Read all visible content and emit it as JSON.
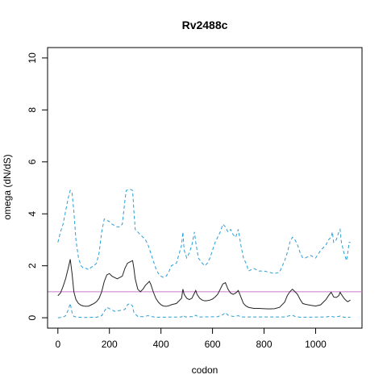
{
  "chart_data": {
    "type": "line",
    "title": "Rv2488c",
    "xlabel": "codon",
    "ylabel": "omega (dN/dS)",
    "xlim": [
      -40,
      1180
    ],
    "ylim": [
      -0.4,
      10.4
    ],
    "xticks": [
      0,
      200,
      400,
      600,
      800,
      1000
    ],
    "yticks": [
      0,
      2,
      4,
      6,
      8,
      10
    ],
    "grid": false,
    "reference_line": {
      "y": 1,
      "color": "#c77cc7"
    },
    "series": [
      {
        "style": "upper",
        "color": "#2a9fd6",
        "dash": "dashed",
        "points": [
          [
            0,
            2.9
          ],
          [
            10,
            3.3
          ],
          [
            20,
            3.6
          ],
          [
            30,
            4.1
          ],
          [
            40,
            4.6
          ],
          [
            48,
            4.9
          ],
          [
            55,
            4.8
          ],
          [
            62,
            4.1
          ],
          [
            70,
            3.0
          ],
          [
            80,
            2.3
          ],
          [
            90,
            2.0
          ],
          [
            100,
            1.9
          ],
          [
            110,
            1.9
          ],
          [
            120,
            1.85
          ],
          [
            130,
            1.95
          ],
          [
            140,
            2.0
          ],
          [
            150,
            2.1
          ],
          [
            160,
            2.5
          ],
          [
            170,
            3.3
          ],
          [
            180,
            3.8
          ],
          [
            190,
            3.75
          ],
          [
            200,
            3.7
          ],
          [
            210,
            3.6
          ],
          [
            220,
            3.55
          ],
          [
            230,
            3.5
          ],
          [
            240,
            3.5
          ],
          [
            250,
            3.6
          ],
          [
            260,
            4.5
          ],
          [
            265,
            4.9
          ],
          [
            280,
            4.95
          ],
          [
            290,
            4.9
          ],
          [
            295,
            4.1
          ],
          [
            300,
            3.4
          ],
          [
            310,
            3.3
          ],
          [
            320,
            3.2
          ],
          [
            330,
            3.1
          ],
          [
            340,
            3.0
          ],
          [
            350,
            2.8
          ],
          [
            360,
            2.5
          ],
          [
            370,
            2.2
          ],
          [
            380,
            1.9
          ],
          [
            390,
            1.7
          ],
          [
            400,
            1.6
          ],
          [
            410,
            1.55
          ],
          [
            420,
            1.6
          ],
          [
            430,
            1.75
          ],
          [
            440,
            2.0
          ],
          [
            460,
            2.1
          ],
          [
            480,
            2.8
          ],
          [
            485,
            3.3
          ],
          [
            490,
            2.6
          ],
          [
            500,
            2.3
          ],
          [
            510,
            2.5
          ],
          [
            520,
            2.8
          ],
          [
            530,
            3.3
          ],
          [
            535,
            2.9
          ],
          [
            545,
            2.3
          ],
          [
            560,
            2.1
          ],
          [
            570,
            2.0
          ],
          [
            580,
            2.1
          ],
          [
            590,
            2.3
          ],
          [
            600,
            2.6
          ],
          [
            610,
            2.9
          ],
          [
            620,
            3.1
          ],
          [
            630,
            3.3
          ],
          [
            640,
            3.6
          ],
          [
            650,
            3.5
          ],
          [
            660,
            3.3
          ],
          [
            670,
            3.4
          ],
          [
            680,
            3.2
          ],
          [
            690,
            3.1
          ],
          [
            700,
            3.4
          ],
          [
            710,
            2.8
          ],
          [
            720,
            2.3
          ],
          [
            730,
            2.1
          ],
          [
            740,
            1.8
          ],
          [
            760,
            1.9
          ],
          [
            780,
            1.8
          ],
          [
            800,
            1.8
          ],
          [
            820,
            1.75
          ],
          [
            840,
            1.7
          ],
          [
            860,
            1.75
          ],
          [
            880,
            2.2
          ],
          [
            890,
            2.5
          ],
          [
            900,
            2.9
          ],
          [
            910,
            3.1
          ],
          [
            920,
            3.0
          ],
          [
            930,
            2.8
          ],
          [
            940,
            2.5
          ],
          [
            950,
            2.3
          ],
          [
            960,
            2.3
          ],
          [
            980,
            2.4
          ],
          [
            1000,
            2.3
          ],
          [
            1020,
            2.6
          ],
          [
            1030,
            2.7
          ],
          [
            1040,
            2.8
          ],
          [
            1050,
            3.0
          ],
          [
            1060,
            3.1
          ],
          [
            1065,
            3.3
          ],
          [
            1070,
            2.9
          ],
          [
            1080,
            3.0
          ],
          [
            1090,
            3.3
          ],
          [
            1095,
            3.4
          ],
          [
            1100,
            2.9
          ],
          [
            1110,
            2.5
          ],
          [
            1120,
            2.2
          ],
          [
            1125,
            2.5
          ],
          [
            1130,
            2.9
          ],
          [
            1135,
            2.9
          ]
        ]
      },
      {
        "style": "mean",
        "color": "#222222",
        "dash": "solid",
        "points": [
          [
            0,
            0.85
          ],
          [
            10,
            0.95
          ],
          [
            20,
            1.2
          ],
          [
            30,
            1.5
          ],
          [
            40,
            1.9
          ],
          [
            48,
            2.25
          ],
          [
            55,
            1.7
          ],
          [
            62,
            1.0
          ],
          [
            70,
            0.7
          ],
          [
            80,
            0.55
          ],
          [
            90,
            0.48
          ],
          [
            100,
            0.45
          ],
          [
            110,
            0.44
          ],
          [
            120,
            0.45
          ],
          [
            130,
            0.5
          ],
          [
            140,
            0.55
          ],
          [
            150,
            0.62
          ],
          [
            160,
            0.75
          ],
          [
            170,
            1.0
          ],
          [
            180,
            1.4
          ],
          [
            190,
            1.65
          ],
          [
            200,
            1.7
          ],
          [
            210,
            1.6
          ],
          [
            220,
            1.55
          ],
          [
            230,
            1.5
          ],
          [
            240,
            1.55
          ],
          [
            250,
            1.6
          ],
          [
            260,
            1.9
          ],
          [
            270,
            2.1
          ],
          [
            280,
            2.15
          ],
          [
            290,
            2.2
          ],
          [
            295,
            1.9
          ],
          [
            300,
            1.5
          ],
          [
            310,
            1.1
          ],
          [
            320,
            1.0
          ],
          [
            330,
            1.1
          ],
          [
            340,
            1.25
          ],
          [
            350,
            1.35
          ],
          [
            355,
            1.4
          ],
          [
            360,
            1.3
          ],
          [
            370,
            1.0
          ],
          [
            380,
            0.75
          ],
          [
            390,
            0.6
          ],
          [
            400,
            0.5
          ],
          [
            410,
            0.45
          ],
          [
            420,
            0.44
          ],
          [
            430,
            0.46
          ],
          [
            440,
            0.5
          ],
          [
            460,
            0.55
          ],
          [
            480,
            0.75
          ],
          [
            485,
            1.1
          ],
          [
            490,
            0.9
          ],
          [
            500,
            0.75
          ],
          [
            510,
            0.7
          ],
          [
            520,
            0.75
          ],
          [
            530,
            0.95
          ],
          [
            535,
            1.05
          ],
          [
            540,
            0.9
          ],
          [
            550,
            0.75
          ],
          [
            560,
            0.68
          ],
          [
            570,
            0.65
          ],
          [
            580,
            0.66
          ],
          [
            590,
            0.68
          ],
          [
            600,
            0.72
          ],
          [
            610,
            0.8
          ],
          [
            620,
            0.9
          ],
          [
            630,
            1.1
          ],
          [
            640,
            1.3
          ],
          [
            650,
            1.35
          ],
          [
            660,
            1.1
          ],
          [
            670,
            0.95
          ],
          [
            680,
            0.9
          ],
          [
            690,
            0.95
          ],
          [
            700,
            1.05
          ],
          [
            710,
            0.8
          ],
          [
            720,
            0.55
          ],
          [
            730,
            0.45
          ],
          [
            740,
            0.4
          ],
          [
            760,
            0.36
          ],
          [
            780,
            0.36
          ],
          [
            800,
            0.35
          ],
          [
            820,
            0.34
          ],
          [
            840,
            0.35
          ],
          [
            860,
            0.4
          ],
          [
            880,
            0.6
          ],
          [
            890,
            0.85
          ],
          [
            900,
            1.0
          ],
          [
            910,
            1.1
          ],
          [
            920,
            1.0
          ],
          [
            930,
            0.9
          ],
          [
            940,
            0.7
          ],
          [
            950,
            0.55
          ],
          [
            960,
            0.52
          ],
          [
            980,
            0.48
          ],
          [
            1000,
            0.45
          ],
          [
            1020,
            0.5
          ],
          [
            1030,
            0.6
          ],
          [
            1040,
            0.7
          ],
          [
            1050,
            0.85
          ],
          [
            1060,
            0.98
          ],
          [
            1065,
            0.9
          ],
          [
            1070,
            0.8
          ],
          [
            1080,
            0.78
          ],
          [
            1090,
            0.85
          ],
          [
            1095,
            0.98
          ],
          [
            1100,
            0.9
          ],
          [
            1110,
            0.75
          ],
          [
            1120,
            0.65
          ],
          [
            1125,
            0.62
          ],
          [
            1130,
            0.65
          ],
          [
            1135,
            0.68
          ]
        ]
      },
      {
        "style": "lower",
        "color": "#2a9fd6",
        "dash": "dashed",
        "points": [
          [
            0,
            0.0
          ],
          [
            20,
            0.02
          ],
          [
            30,
            0.08
          ],
          [
            40,
            0.3
          ],
          [
            48,
            0.55
          ],
          [
            55,
            0.2
          ],
          [
            62,
            0.05
          ],
          [
            80,
            0.02
          ],
          [
            100,
            0.01
          ],
          [
            150,
            0.02
          ],
          [
            170,
            0.08
          ],
          [
            180,
            0.25
          ],
          [
            190,
            0.4
          ],
          [
            200,
            0.35
          ],
          [
            210,
            0.3
          ],
          [
            220,
            0.25
          ],
          [
            240,
            0.28
          ],
          [
            260,
            0.32
          ],
          [
            270,
            0.5
          ],
          [
            280,
            0.55
          ],
          [
            290,
            0.45
          ],
          [
            295,
            0.2
          ],
          [
            310,
            0.05
          ],
          [
            330,
            0.04
          ],
          [
            350,
            0.08
          ],
          [
            360,
            0.05
          ],
          [
            380,
            0.02
          ],
          [
            480,
            0.03
          ],
          [
            485,
            0.1
          ],
          [
            495,
            0.03
          ],
          [
            530,
            0.05
          ],
          [
            535,
            0.1
          ],
          [
            545,
            0.03
          ],
          [
            620,
            0.04
          ],
          [
            640,
            0.12
          ],
          [
            650,
            0.2
          ],
          [
            660,
            0.1
          ],
          [
            680,
            0.05
          ],
          [
            700,
            0.08
          ],
          [
            710,
            0.03
          ],
          [
            880,
            0.03
          ],
          [
            900,
            0.08
          ],
          [
            910,
            0.1
          ],
          [
            920,
            0.05
          ],
          [
            940,
            0.02
          ],
          [
            1040,
            0.03
          ],
          [
            1060,
            0.06
          ],
          [
            1070,
            0.03
          ],
          [
            1090,
            0.05
          ],
          [
            1095,
            0.07
          ],
          [
            1110,
            0.02
          ],
          [
            1135,
            0.02
          ]
        ]
      }
    ]
  }
}
